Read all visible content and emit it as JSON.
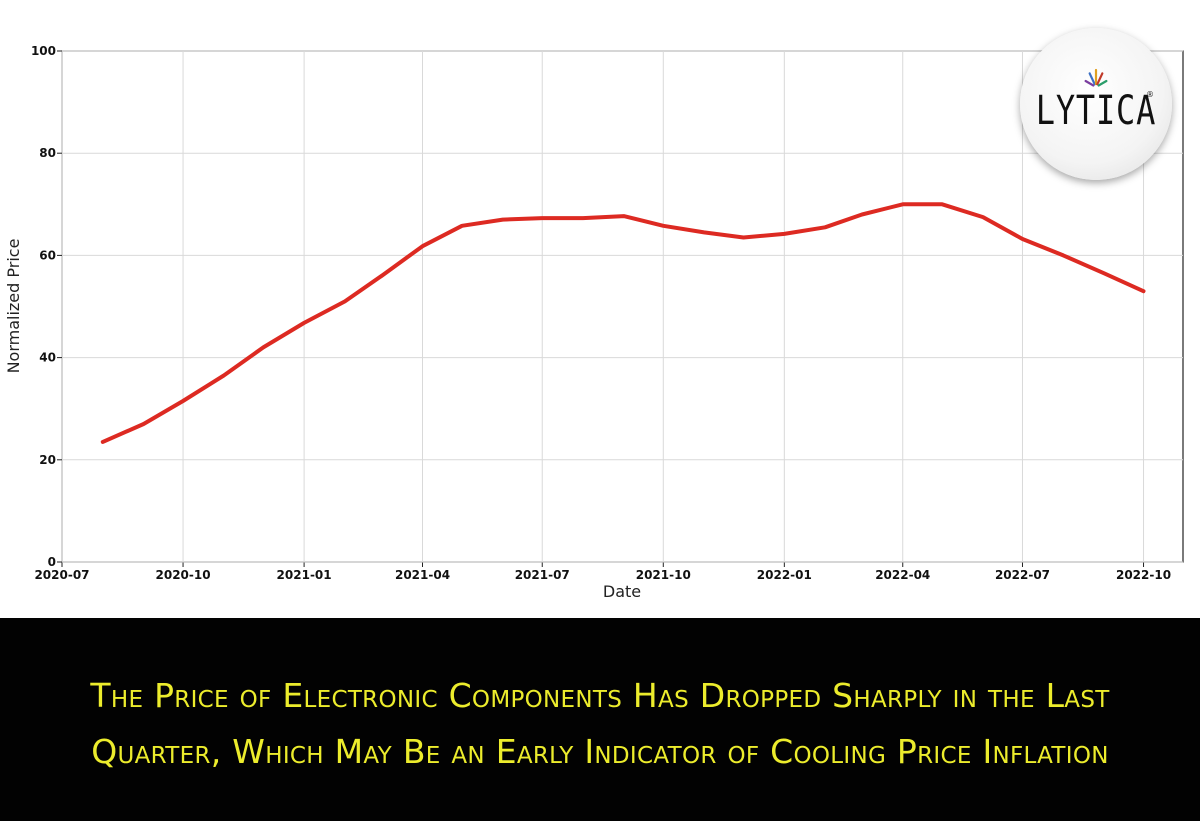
{
  "chart_data": {
    "type": "line",
    "title": "",
    "xlabel": "Date",
    "ylabel": "Normalized Price",
    "ylim": [
      0,
      100
    ],
    "xlim": [
      "2020-07-01",
      "2022-10-31"
    ],
    "grid": true,
    "x_ticks": [
      "2020-07",
      "2020-10",
      "2021-01",
      "2021-04",
      "2021-07",
      "2021-10",
      "2022-01",
      "2022-04",
      "2022-07",
      "2022-10"
    ],
    "y_ticks": [
      0,
      20,
      40,
      60,
      80,
      100
    ],
    "line_color": "#dd2a22",
    "x": [
      "2020-08-01",
      "2020-09-01",
      "2020-10-01",
      "2020-11-01",
      "2020-12-01",
      "2021-01-01",
      "2021-02-01",
      "2021-03-01",
      "2021-04-01",
      "2021-05-01",
      "2021-06-01",
      "2021-07-01",
      "2021-08-01",
      "2021-09-01",
      "2021-10-01",
      "2021-11-01",
      "2021-12-01",
      "2022-01-01",
      "2022-02-01",
      "2022-03-01",
      "2022-04-01",
      "2022-05-01",
      "2022-06-01",
      "2022-07-01",
      "2022-08-01",
      "2022-09-01",
      "2022-10-01"
    ],
    "values": [
      23.5,
      27,
      31.5,
      36.5,
      42,
      46.8,
      51,
      56,
      61.8,
      65.8,
      67,
      67.3,
      67.3,
      67.7,
      65.8,
      64.5,
      63.5,
      64.2,
      65.5,
      68,
      70,
      70,
      67.5,
      63.2,
      60,
      56.5,
      53
    ]
  },
  "logo": {
    "text": "LYTICA",
    "reg_mark": "®",
    "ray_colors": [
      "#7b3fa0",
      "#3b6fc4",
      "#e0a020",
      "#c03a2a",
      "#2a9d6a"
    ]
  },
  "banner": {
    "line1": "The Price of Electronic Components Has Dropped Sharply in the Last",
    "line2": "Quarter, Which May Be an Early Indicator of Cooling Price Inflation",
    "text_color": "#ecec2c",
    "background": "#020202"
  }
}
